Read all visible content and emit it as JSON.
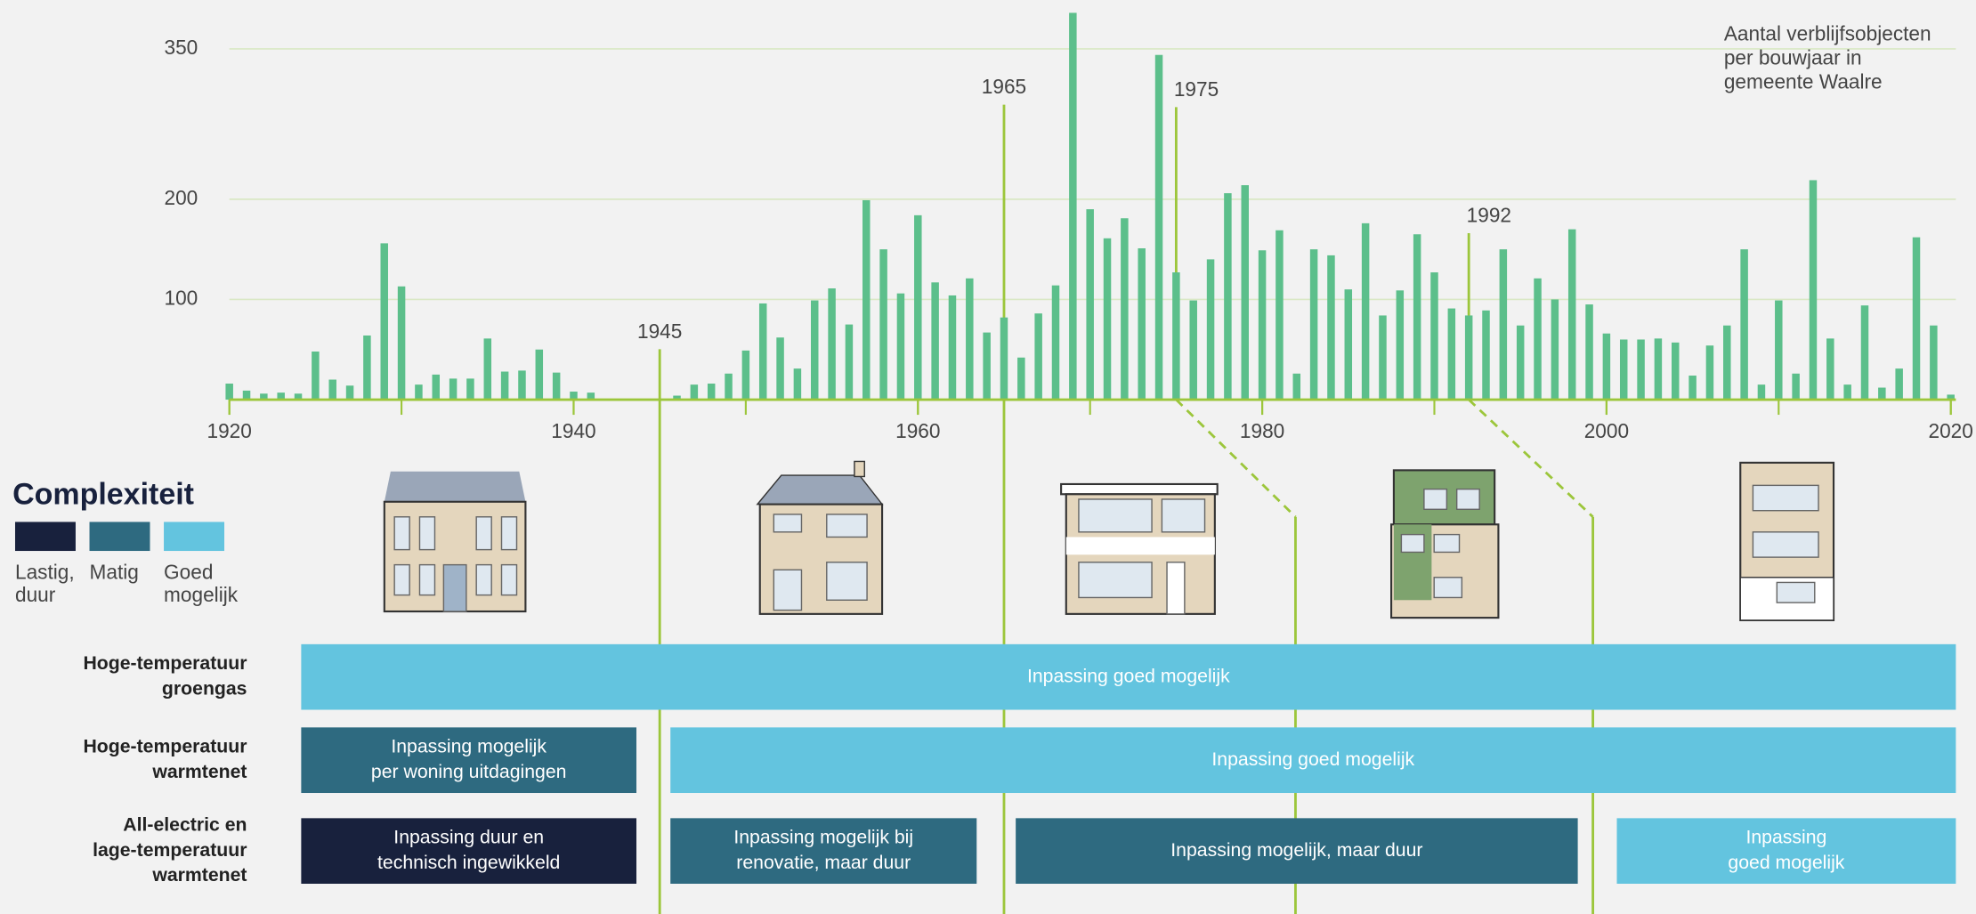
{
  "chart_data": {
    "type": "bar",
    "title": [
      "Aantal verblijfsobjecten",
      "per bouwjaar in",
      "gemeente Waalre"
    ],
    "x": [
      1920,
      1921,
      1922,
      1923,
      1924,
      1925,
      1926,
      1927,
      1928,
      1929,
      1930,
      1931,
      1932,
      1933,
      1934,
      1935,
      1936,
      1937,
      1938,
      1939,
      1940,
      1941,
      1942,
      1943,
      1944,
      1945,
      1946,
      1947,
      1948,
      1949,
      1950,
      1951,
      1952,
      1953,
      1954,
      1955,
      1956,
      1957,
      1958,
      1959,
      1960,
      1961,
      1962,
      1963,
      1964,
      1965,
      1966,
      1967,
      1968,
      1969,
      1970,
      1971,
      1972,
      1973,
      1974,
      1975,
      1976,
      1977,
      1978,
      1979,
      1980,
      1981,
      1982,
      1983,
      1984,
      1985,
      1986,
      1987,
      1988,
      1989,
      1990,
      1991,
      1992,
      1993,
      1994,
      1995,
      1996,
      1997,
      1998,
      1999,
      2000,
      2001,
      2002,
      2003,
      2004,
      2005,
      2006,
      2007,
      2008,
      2009,
      2010,
      2011,
      2012,
      2013,
      2014,
      2015,
      2016,
      2017,
      2018,
      2019,
      2020
    ],
    "values": [
      16,
      9,
      6,
      7,
      6,
      48,
      20,
      14,
      64,
      156,
      113,
      15,
      25,
      21,
      21,
      61,
      28,
      29,
      50,
      27,
      8,
      7,
      null,
      null,
      null,
      null,
      4,
      15,
      16,
      26,
      49,
      96,
      62,
      31,
      99,
      111,
      75,
      199,
      150,
      106,
      184,
      117,
      104,
      121,
      67,
      82,
      42,
      86,
      114,
      386,
      190,
      161,
      181,
      151,
      344,
      127,
      99,
      140,
      206,
      214,
      149,
      169,
      26,
      150,
      144,
      110,
      176,
      84,
      109,
      165,
      127,
      91,
      84,
      89,
      150,
      74,
      121,
      100,
      170,
      95,
      66,
      60,
      60,
      61,
      57,
      24,
      54,
      74,
      150,
      15,
      99,
      26,
      219,
      61,
      15,
      94,
      12,
      31,
      162,
      74,
      5
    ],
    "color": "#5cbf8b",
    "xlim": [
      1920,
      2020
    ],
    "ylim": [
      0,
      390
    ],
    "xticks": [
      1920,
      1940,
      1960,
      1980,
      2000,
      2020
    ],
    "yticks": [
      100,
      200,
      350
    ],
    "grid": true,
    "annotations": [
      {
        "x": 1945
      },
      {
        "x": 1965
      },
      {
        "x": 1975
      },
      {
        "x": 1992
      }
    ],
    "annotation_color": "#9cc63b"
  },
  "legend": {
    "title": "Complexiteit",
    "items": [
      {
        "label": [
          "Lastig,",
          "duur"
        ],
        "color": "#18213d"
      },
      {
        "label": [
          "Matig"
        ],
        "color": "#2e6a80"
      },
      {
        "label": [
          "Goed",
          "mogelijk"
        ],
        "color": "#63c4df"
      }
    ]
  },
  "rows": [
    {
      "label": [
        "Hoge-temperatuur",
        "groengas"
      ],
      "bands": [
        {
          "text": [
            "Inpassing goed mogelijk"
          ],
          "level": 2
        }
      ]
    },
    {
      "label": [
        "Hoge-temperatuur",
        "warmtenet"
      ],
      "bands": [
        {
          "text": [
            "Inpassing mogelijk",
            "per woning uitdagingen"
          ],
          "level": 1
        },
        {
          "text": [
            "Inpassing goed mogelijk"
          ],
          "level": 2
        }
      ]
    },
    {
      "label": [
        "All-electric en",
        "lage-temperatuur",
        "warmtenet"
      ],
      "bands": [
        {
          "text": [
            "Inpassing duur en",
            "technisch ingewikkeld"
          ],
          "level": 0
        },
        {
          "text": [
            "Inpassing mogelijk bij",
            "renovatie, maar duur"
          ],
          "level": 1
        },
        {
          "text": [
            "Inpassing mogelijk, maar duur"
          ],
          "level": 1
        },
        {
          "text": [
            "Inpassing",
            "goed mogelijk"
          ],
          "level": 2
        }
      ]
    }
  ]
}
